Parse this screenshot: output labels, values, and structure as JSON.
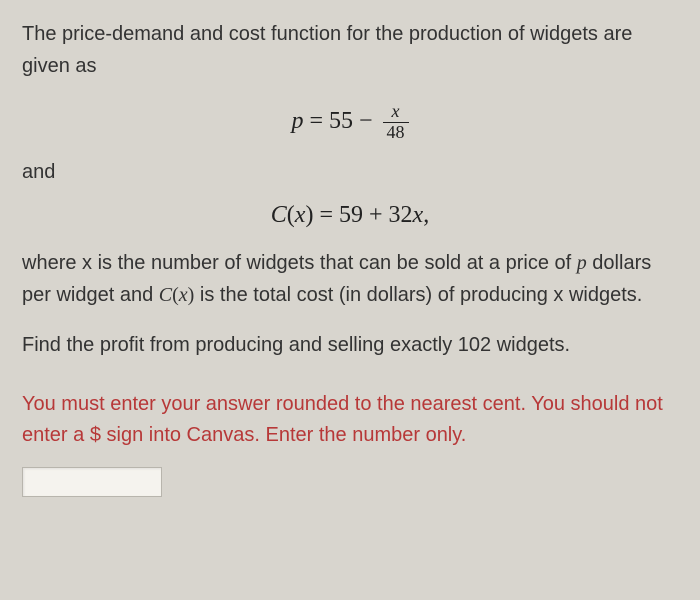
{
  "intro": "The price-demand and cost function for the production of widgets are given as",
  "equation1": {
    "lhs_var": "p",
    "equals": " = ",
    "constant": "55",
    "minus": " − ",
    "frac_num_var": "x",
    "frac_den": "48"
  },
  "and_label": "and",
  "equation2": {
    "func": "C",
    "open": "(",
    "var": "x",
    "close": ")",
    "equals": " = ",
    "rhs": "59 + 32",
    "rhs_var": "x",
    "comma": ","
  },
  "description_parts": {
    "p1": "where x is the number of widgets that can be sold at a  price of ",
    "p_var": "p",
    "p2": " dollars per widget and ",
    "cx_func": "C",
    "cx_open": "(",
    "cx_var": "x",
    "cx_close": ")",
    "p3": " is the total cost (in dollars) of producing x widgets."
  },
  "question": "Find the profit from producing and selling exactly 102 widgets.",
  "instruction": "You must enter your answer rounded to the nearest cent. You should not enter a $ sign into Canvas. Enter the number only.",
  "answer_value": "",
  "colors": {
    "background": "#d8d5ce",
    "body_text": "#333333",
    "instruction_text": "#b73838",
    "input_bg": "#f5f3ee",
    "input_border": "#b8b5ad"
  },
  "fonts": {
    "body_family": "Arial, Helvetica, sans-serif",
    "math_family": "Times New Roman, Times, serif",
    "body_size_pt": 15,
    "equation_size_pt": 18
  }
}
